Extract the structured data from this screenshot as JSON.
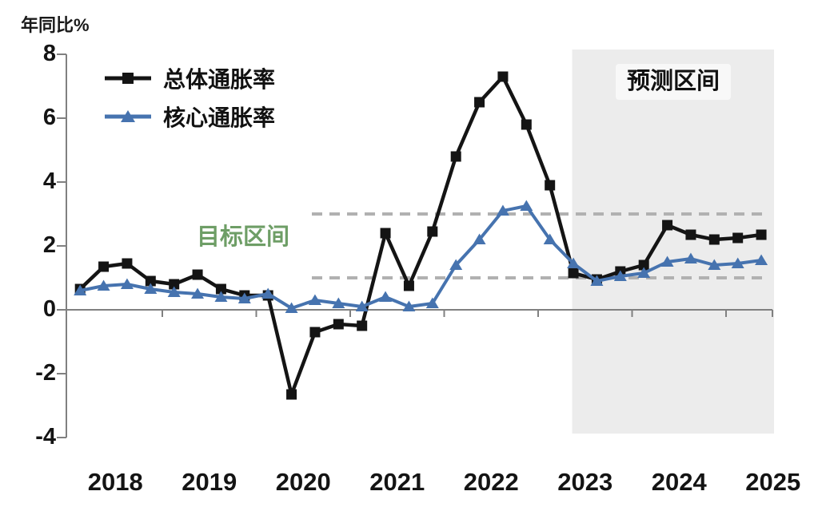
{
  "unit_label": "年同比%",
  "legend": {
    "headline_label": "总体通胀率",
    "core_label": "核心通胀率"
  },
  "annotations": {
    "target_band_label": "目标区间",
    "forecast_label": "预测区间"
  },
  "colors": {
    "headline": "#141414",
    "core": "#4673af",
    "target_label_green": "#6e9e66",
    "dashed_line": "#b1b1b1",
    "axis": "#808080",
    "forecast_region": "#ececec"
  },
  "chart_data": {
    "type": "line",
    "title": "",
    "ylabel": "年同比%",
    "xlabel": "",
    "ylim": [
      -4,
      8
    ],
    "yticks": [
      8,
      6,
      4,
      2,
      0,
      -2,
      -4
    ],
    "grid": false,
    "legend_position": "top-left-inside",
    "x_year_labels": [
      "2018",
      "2019",
      "2020",
      "2021",
      "2022",
      "2023",
      "2024",
      "2025"
    ],
    "categories": [
      "2018Q1",
      "2018Q2",
      "2018Q3",
      "2018Q4",
      "2019Q1",
      "2019Q2",
      "2019Q3",
      "2019Q4",
      "2020Q1",
      "2020Q2",
      "2020Q3",
      "2020Q4",
      "2021Q1",
      "2021Q2",
      "2021Q3",
      "2021Q4",
      "2022Q1",
      "2022Q2",
      "2022Q3",
      "2022Q4",
      "2023Q1",
      "2023Q2",
      "2023Q3",
      "2023Q4",
      "2024Q1",
      "2024Q2",
      "2024Q3",
      "2024Q4",
      "2025Q1",
      "2025Q2"
    ],
    "series": [
      {
        "name": "总体通胀率",
        "marker": "square",
        "color": "#141414",
        "values": [
          0.65,
          1.35,
          1.45,
          0.9,
          0.8,
          1.1,
          0.65,
          0.45,
          0.45,
          -2.65,
          -0.7,
          -0.45,
          -0.5,
          2.4,
          0.75,
          2.45,
          4.8,
          6.5,
          7.3,
          5.8,
          3.9,
          1.15,
          0.95,
          1.2,
          1.4,
          2.65,
          2.35,
          2.2,
          2.25,
          2.35
        ]
      },
      {
        "name": "核心通胀率",
        "marker": "triangle",
        "color": "#4673af",
        "values": [
          0.6,
          0.75,
          0.8,
          0.65,
          0.55,
          0.5,
          0.4,
          0.35,
          0.5,
          0.05,
          0.3,
          0.2,
          0.1,
          0.4,
          0.1,
          0.2,
          1.4,
          2.2,
          3.1,
          3.25,
          2.2,
          1.45,
          0.9,
          1.05,
          1.15,
          1.5,
          1.6,
          1.4,
          1.45,
          1.55
        ]
      }
    ],
    "target_band": {
      "low": 1.0,
      "high": 3.0,
      "style": "dashed",
      "label": "目标区间"
    },
    "forecast": {
      "label": "预测区间",
      "start_category": "2023Q2",
      "start_index": 21
    }
  }
}
